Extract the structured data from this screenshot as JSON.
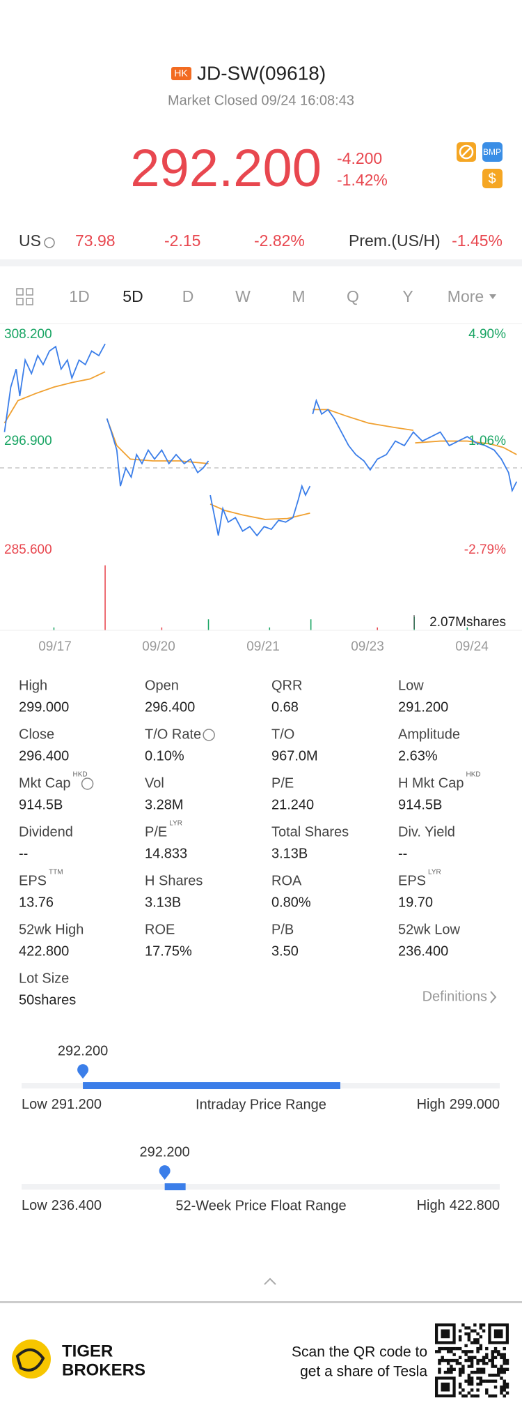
{
  "header": {
    "badge": "HK",
    "title": "JD-SW(09618)",
    "status": "Market Closed 09/24 16:08:43"
  },
  "quote": {
    "price": "292.200",
    "change": "-4.200",
    "change_pct": "-1.42%",
    "icons": [
      "BMP",
      "$"
    ]
  },
  "us_row": {
    "label": "US",
    "price": "73.98",
    "change": "-2.15",
    "change_pct": "-2.82%",
    "premium_label": "Prem.(US/H)",
    "premium": "-1.45%"
  },
  "tabs": [
    "1D",
    "5D",
    "D",
    "W",
    "M",
    "Q",
    "Y",
    "More"
  ],
  "intraday_chart": {
    "price_labels": [
      "308.200",
      "296.900",
      "285.600"
    ],
    "pct_labels": [
      "4.90%",
      "1.06%",
      "-2.79%"
    ],
    "volume": "2.07Mshares",
    "dates": [
      "09/17",
      "09/20",
      "09/21",
      "09/23",
      "09/24"
    ]
  },
  "stats": [
    {
      "label": "High",
      "value": "299.000"
    },
    {
      "label": "Open",
      "value": "296.400"
    },
    {
      "label": "QRR",
      "value": "0.68"
    },
    {
      "label": "Low",
      "value": "291.200"
    },
    {
      "label": "Close",
      "value": "296.400"
    },
    {
      "label": "T/O Rate",
      "value": "0.10%",
      "info": true
    },
    {
      "label": "T/O",
      "value": "967.0M"
    },
    {
      "label": "Amplitude",
      "value": "2.63%"
    },
    {
      "label": "Mkt Cap",
      "sup": "HKD",
      "value": "914.5B",
      "info": true
    },
    {
      "label": "Vol",
      "value": "3.28M"
    },
    {
      "label": "P/E",
      "value": "21.240"
    },
    {
      "label": "H Mkt Cap",
      "sup": "HKD",
      "value": "914.5B"
    },
    {
      "label": "Dividend",
      "value": "--"
    },
    {
      "label": "P/E",
      "sup": "LYR",
      "value": "14.833"
    },
    {
      "label": "Total Shares",
      "value": "3.13B"
    },
    {
      "label": "Div. Yield",
      "value": "--"
    },
    {
      "label": "EPS",
      "sup": "TTM",
      "value": "13.76"
    },
    {
      "label": "H Shares",
      "value": "3.13B"
    },
    {
      "label": "ROA",
      "value": "0.80%"
    },
    {
      "label": "EPS",
      "sup": "LYR",
      "value": "19.70"
    },
    {
      "label": "52wk High",
      "value": "422.800"
    },
    {
      "label": "ROE",
      "value": "17.75%"
    },
    {
      "label": "P/B",
      "value": "3.50"
    },
    {
      "label": "52wk Low",
      "value": "236.400"
    },
    {
      "label": "Lot Size",
      "value": "50shares"
    }
  ],
  "definitions": "Definitions",
  "ranges": [
    {
      "current": "292.200",
      "low_prefix": "Low",
      "low": "291.200",
      "title": "Intraday Price Range",
      "high_prefix": "High",
      "high": "299.000"
    },
    {
      "current": "292.200",
      "low_prefix": "Low",
      "low": "236.400",
      "title": "52-Week Price Float Range",
      "high_prefix": "High",
      "high": "422.800"
    }
  ],
  "footer": {
    "brand": [
      "TIGER",
      "BROKERS"
    ],
    "qr_text": [
      "Scan the QR code to",
      "get a share of Tesla"
    ]
  }
}
